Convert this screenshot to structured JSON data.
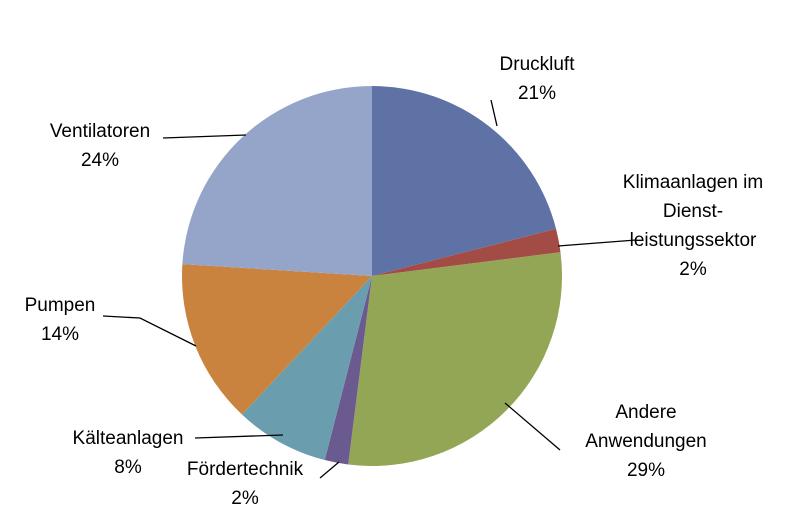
{
  "chart_data": {
    "type": "pie",
    "title": "",
    "legend": "none",
    "slices": [
      {
        "label_lines": [
          "Druckluft"
        ],
        "value_label": "21%",
        "value": 21,
        "color": "#5f72a6"
      },
      {
        "label_lines": [
          "Klimaanlagen im",
          "Dienst-",
          "leistungssektor"
        ],
        "value_label": "2%",
        "value": 2,
        "color": "#a34c46"
      },
      {
        "label_lines": [
          "Andere",
          "Anwendungen"
        ],
        "value_label": "29%",
        "value": 29,
        "color": "#93a656"
      },
      {
        "label_lines": [
          "Fördertechnik"
        ],
        "value_label": "2%",
        "value": 2,
        "color": "#6b5a8f"
      },
      {
        "label_lines": [
          "Kälteanlagen"
        ],
        "value_label": "8%",
        "value": 8,
        "color": "#6a9eae"
      },
      {
        "label_lines": [
          "Pumpen"
        ],
        "value_label": "14%",
        "value": 14,
        "color": "#c9833e"
      },
      {
        "label_lines": [
          "Ventilatoren"
        ],
        "value_label": "24%",
        "value": 24,
        "color": "#95a5c9"
      }
    ]
  }
}
